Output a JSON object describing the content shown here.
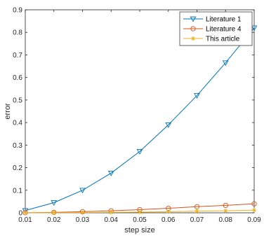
{
  "chart_data": {
    "type": "line",
    "xlabel": "step size",
    "ylabel": "error",
    "xlim": [
      0.01,
      0.09
    ],
    "ylim": [
      0,
      0.9
    ],
    "x": [
      0.01,
      0.02,
      0.03,
      0.04,
      0.05,
      0.06,
      0.07,
      0.08,
      0.09
    ],
    "x_ticks": [
      "0.01",
      "0.02",
      "0.03",
      "0.04",
      "0.05",
      "0.06",
      "0.07",
      "0.08",
      "0.09"
    ],
    "y_ticks": [
      "0",
      "0.1",
      "0.2",
      "0.3",
      "0.4",
      "0.5",
      "0.6",
      "0.7",
      "0.8",
      "0.9"
    ],
    "grid": false,
    "legend_position": "top-right",
    "series": [
      {
        "name": "Literature 1",
        "color": "#0072BD",
        "marker": "triangle-down",
        "values": [
          0.01,
          0.045,
          0.1,
          0.176,
          0.272,
          0.39,
          0.52,
          0.665,
          0.82
        ]
      },
      {
        "name": "Literature 4",
        "color": "#D95319",
        "marker": "circle",
        "values": [
          0.0005,
          0.002,
          0.005,
          0.009,
          0.014,
          0.02,
          0.027,
          0.033,
          0.04
        ]
      },
      {
        "name": "This article",
        "color": "#EDB120",
        "marker": "asterisk",
        "values": [
          0.0002,
          0.0005,
          0.001,
          0.002,
          0.003,
          0.005,
          0.007,
          0.009,
          0.012
        ]
      }
    ]
  }
}
